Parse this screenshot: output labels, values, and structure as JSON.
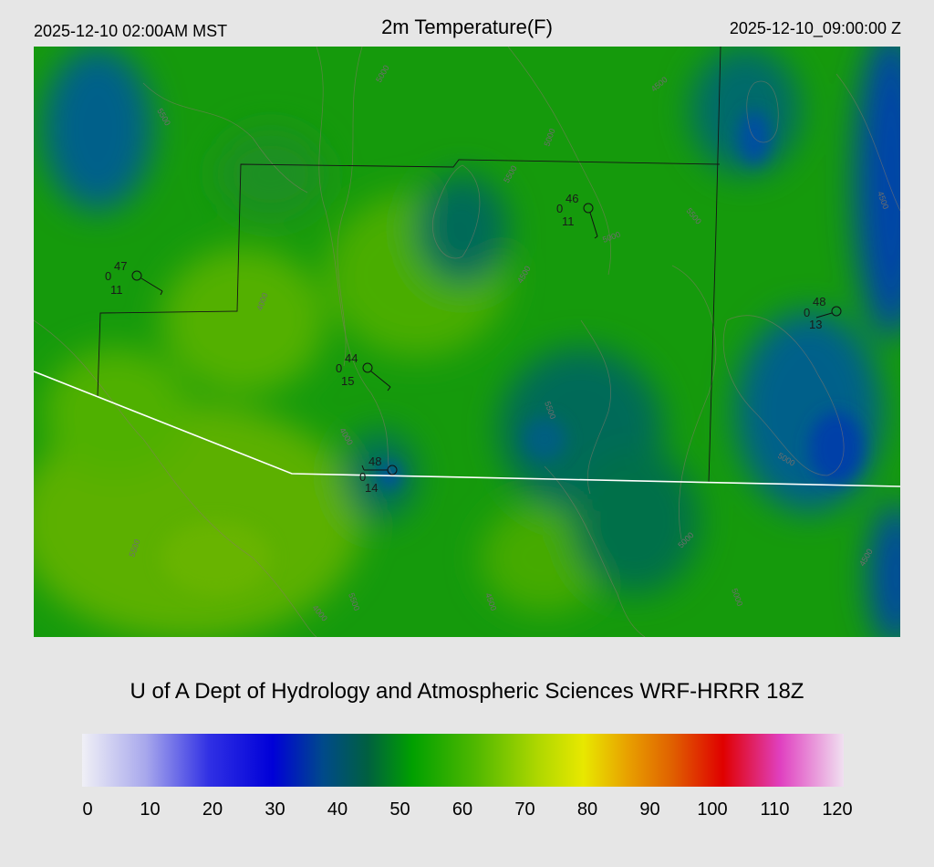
{
  "header": {
    "local_time": "2025-12-10 02:00AM MST",
    "title": "2m Temperature(F)",
    "utc_time": "2025-12-10_09:00:00 Z"
  },
  "credit": "U of A Dept of Hydrology and Atmospheric Sciences WRF-HRRR 18Z",
  "colorbar": {
    "ticks": [
      "0",
      "10",
      "20",
      "30",
      "40",
      "50",
      "60",
      "70",
      "80",
      "90",
      "100",
      "110",
      "120"
    ],
    "colors": [
      {
        "value": 0,
        "color": "#f0f0f6"
      },
      {
        "value": 10,
        "color": "#a8a8ec"
      },
      {
        "value": 20,
        "color": "#3030e4"
      },
      {
        "value": 30,
        "color": "#0000d8"
      },
      {
        "value": 38,
        "color": "#004a8a"
      },
      {
        "value": 45,
        "color": "#006040"
      },
      {
        "value": 52,
        "color": "#00a000"
      },
      {
        "value": 62,
        "color": "#50b800"
      },
      {
        "value": 72,
        "color": "#b0d800"
      },
      {
        "value": 79,
        "color": "#e8e800"
      },
      {
        "value": 86,
        "color": "#e8a000"
      },
      {
        "value": 93,
        "color": "#e06000"
      },
      {
        "value": 101,
        "color": "#e00000"
      },
      {
        "value": 110,
        "color": "#e040c0"
      },
      {
        "value": 120,
        "color": "#f0e0f0"
      }
    ]
  },
  "stations": [
    {
      "id": "stn-1",
      "temp": "47",
      "precip": "0",
      "dew": "11"
    },
    {
      "id": "stn-2",
      "temp": "46",
      "precip": "0",
      "dew": "11"
    },
    {
      "id": "stn-3",
      "temp": "48",
      "precip": "0",
      "dew": "13"
    },
    {
      "id": "stn-4",
      "temp": "44",
      "precip": "0",
      "dew": "15"
    },
    {
      "id": "stn-5",
      "temp": "48",
      "precip": "0",
      "dew": "14"
    }
  ],
  "contour_labels": [
    "5500",
    "5000",
    "5000",
    "4500",
    "4500",
    "5500",
    "5000",
    "5500",
    "4000",
    "4500",
    "5500",
    "5000",
    "4500",
    "5000",
    "4000",
    "5500",
    "4000",
    "5000",
    "4500",
    "5500"
  ]
}
